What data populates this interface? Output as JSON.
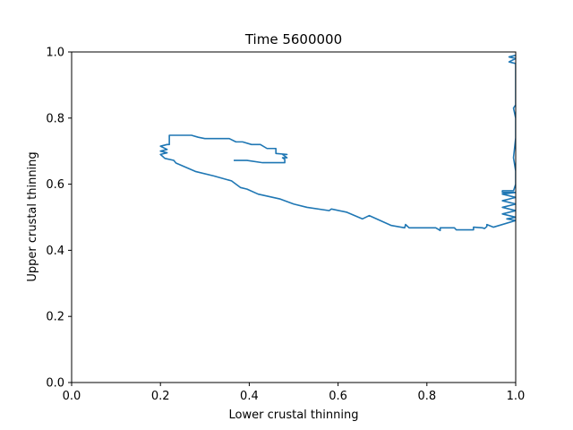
{
  "chart_data": {
    "type": "line",
    "title": "Time 5600000",
    "xlabel": "Lower crustal thinning",
    "ylabel": "Upper crustal thinning",
    "xlim": [
      0.0,
      1.0
    ],
    "ylim": [
      0.0,
      1.0
    ],
    "xticks": [
      "0.0",
      "0.2",
      "0.4",
      "0.6",
      "0.8",
      "1.0"
    ],
    "yticks": [
      "0.0",
      "0.2",
      "0.4",
      "0.6",
      "0.8",
      "1.0"
    ],
    "grid": false,
    "series": [
      {
        "color": "#1f77b4",
        "x": [
          0.365,
          0.395,
          0.43,
          0.48,
          0.48,
          0.475,
          0.485,
          0.475,
          0.485,
          0.46,
          0.46,
          0.44,
          0.425,
          0.405,
          0.385,
          0.37,
          0.355,
          0.335,
          0.3,
          0.285,
          0.27,
          0.22,
          0.22,
          0.215,
          0.2,
          0.215,
          0.2,
          0.215,
          0.2,
          0.21,
          0.23,
          0.235,
          0.28,
          0.32,
          0.36,
          0.38,
          0.395,
          0.42,
          0.47,
          0.5,
          0.53,
          0.58,
          0.585,
          0.62,
          0.655,
          0.67,
          0.72,
          0.75,
          0.752,
          0.76,
          0.762,
          0.82,
          0.83,
          0.83,
          0.862,
          0.866,
          0.905,
          0.905,
          0.925,
          0.93,
          0.935,
          0.935,
          0.95,
          1.0,
          0.98,
          1.0,
          0.97,
          1.0,
          0.97,
          1.0,
          0.97,
          1.0,
          0.97,
          1.0,
          0.97,
          0.97,
          0.995,
          1.0,
          1.0,
          0.995,
          1.0,
          1.0,
          0.995,
          1.0,
          1.0,
          0.985,
          1.0,
          0.985,
          1.0
        ],
        "y": [
          0.672,
          0.672,
          0.665,
          0.665,
          0.675,
          0.68,
          0.68,
          0.69,
          0.69,
          0.693,
          0.708,
          0.708,
          0.72,
          0.72,
          0.728,
          0.728,
          0.738,
          0.738,
          0.738,
          0.742,
          0.748,
          0.748,
          0.72,
          0.72,
          0.715,
          0.705,
          0.7,
          0.695,
          0.69,
          0.678,
          0.672,
          0.664,
          0.638,
          0.625,
          0.61,
          0.59,
          0.585,
          0.57,
          0.555,
          0.54,
          0.53,
          0.52,
          0.525,
          0.515,
          0.495,
          0.505,
          0.475,
          0.468,
          0.478,
          0.468,
          0.468,
          0.468,
          0.46,
          0.468,
          0.468,
          0.462,
          0.462,
          0.47,
          0.468,
          0.466,
          0.472,
          0.478,
          0.47,
          0.49,
          0.495,
          0.5,
          0.51,
          0.52,
          0.53,
          0.54,
          0.55,
          0.56,
          0.57,
          0.575,
          0.575,
          0.58,
          0.58,
          0.6,
          0.64,
          0.68,
          0.74,
          0.8,
          0.83,
          0.84,
          0.965,
          0.97,
          0.98,
          0.985,
          0.99
        ]
      }
    ]
  }
}
